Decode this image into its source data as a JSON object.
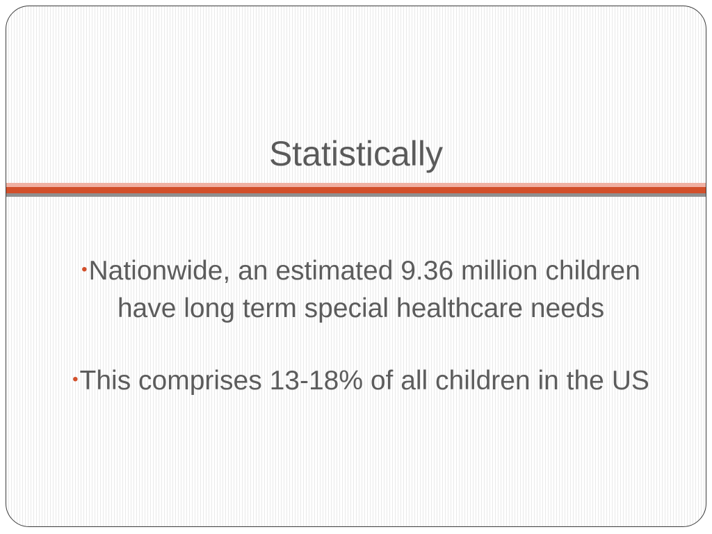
{
  "slide": {
    "title": "Statistically",
    "bullets": [
      "Nationwide, an estimated 9.36 million children have long term special healthcare needs",
      "This comprises 13-18% of all children in the US"
    ],
    "bullet_glyph": "•"
  },
  "colors": {
    "accent": "#d24f2a",
    "accent_light": "#f0b0a2",
    "rule_gray": "#8f8f8f",
    "text": "#5c5c5c",
    "border": "#3a3a3a"
  }
}
